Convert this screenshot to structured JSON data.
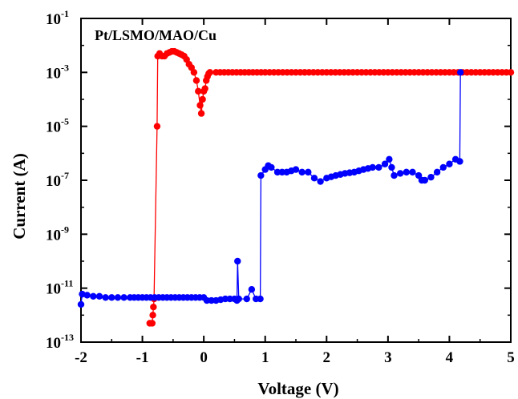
{
  "chart_data": {
    "type": "scatter",
    "title": "",
    "annotation": "Pt/LSMO/MAO/Cu",
    "xlabel": "Voltage (V)",
    "ylabel": "Current (A)",
    "xlim": [
      -2,
      5
    ],
    "ylim_log10": [
      -13,
      -1
    ],
    "y_scale": "log",
    "grid": false,
    "legend": "none",
    "x_ticks": [
      "-2",
      "-1",
      "0",
      "1",
      "2",
      "3",
      "4",
      "5"
    ],
    "y_ticks": [
      {
        "base": "10",
        "exp": "-1"
      },
      {
        "base": "10",
        "exp": "-3"
      },
      {
        "base": "10",
        "exp": "-5"
      },
      {
        "base": "10",
        "exp": "-7"
      },
      {
        "base": "10",
        "exp": "-9"
      },
      {
        "base": "10",
        "exp": "-11"
      },
      {
        "base": "10",
        "exp": "-13"
      }
    ],
    "series": [
      {
        "color": "#ff0000",
        "points": [
          [
            -0.88,
            5e-13
          ],
          [
            -0.84,
            5e-13
          ],
          [
            -0.83,
            1e-12
          ],
          [
            -0.82,
            2e-12
          ],
          [
            -0.81,
            4e-12
          ],
          [
            -0.76,
            1e-05
          ],
          [
            -0.75,
            0.004
          ],
          [
            -0.72,
            0.005
          ],
          [
            -0.68,
            0.004
          ],
          [
            -0.64,
            0.004
          ],
          [
            -0.6,
            0.005
          ],
          [
            -0.56,
            0.0055
          ],
          [
            -0.52,
            0.006
          ],
          [
            -0.48,
            0.006
          ],
          [
            -0.44,
            0.0055
          ],
          [
            -0.4,
            0.005
          ],
          [
            -0.36,
            0.0045
          ],
          [
            -0.32,
            0.004
          ],
          [
            -0.28,
            0.003
          ],
          [
            -0.24,
            0.002
          ],
          [
            -0.2,
            0.0015
          ],
          [
            -0.16,
            0.001
          ],
          [
            -0.12,
            0.0005
          ],
          [
            -0.09,
            0.0002
          ],
          [
            -0.06,
            6e-05
          ],
          [
            -0.04,
            3e-05
          ],
          [
            -0.02,
            0.0001
          ],
          [
            0.0,
            0.0002
          ],
          [
            0.02,
            0.00025
          ],
          [
            0.04,
            0.0005
          ],
          [
            0.06,
            0.0007
          ],
          [
            0.08,
            0.0009
          ],
          [
            0.1,
            0.001
          ],
          [
            0.2,
            0.001
          ],
          [
            0.4,
            0.001
          ],
          [
            0.6,
            0.001
          ],
          [
            0.8,
            0.001
          ],
          [
            1.0,
            0.001
          ],
          [
            1.5,
            0.001
          ],
          [
            2.0,
            0.001
          ],
          [
            2.5,
            0.001
          ],
          [
            3.0,
            0.001
          ],
          [
            3.5,
            0.001
          ],
          [
            4.0,
            0.001
          ],
          [
            4.5,
            0.001
          ],
          [
            5.0,
            0.001
          ]
        ]
      },
      {
        "color": "#0000ff",
        "points": [
          [
            -2.0,
            2.5e-12
          ],
          [
            -1.98,
            6e-12
          ],
          [
            -1.9,
            5.5e-12
          ],
          [
            -1.8,
            5e-12
          ],
          [
            -1.7,
            5e-12
          ],
          [
            -1.6,
            4.5e-12
          ],
          [
            -1.5,
            4.5e-12
          ],
          [
            -1.4,
            4.5e-12
          ],
          [
            -1.3,
            4.5e-12
          ],
          [
            -1.2,
            4.5e-12
          ],
          [
            -1.0,
            4.5e-12
          ],
          [
            -0.8,
            4.5e-12
          ],
          [
            -0.6,
            4.5e-12
          ],
          [
            -0.4,
            4.5e-12
          ],
          [
            -0.2,
            4.5e-12
          ],
          [
            0.0,
            4.5e-12
          ],
          [
            0.05,
            3.5e-12
          ],
          [
            0.2,
            3.5e-12
          ],
          [
            0.35,
            4e-12
          ],
          [
            0.5,
            4e-12
          ],
          [
            0.54,
            3.5e-12
          ],
          [
            0.55,
            1e-10
          ],
          [
            0.57,
            4e-12
          ],
          [
            0.7,
            4e-12
          ],
          [
            0.78,
            9e-12
          ],
          [
            0.85,
            4e-12
          ],
          [
            0.92,
            4e-12
          ],
          [
            0.93,
            1.5e-07
          ],
          [
            1.0,
            2.5e-07
          ],
          [
            1.05,
            3.5e-07
          ],
          [
            1.1,
            3e-07
          ],
          [
            1.2,
            2e-07
          ],
          [
            1.35,
            2e-07
          ],
          [
            1.5,
            2.5e-07
          ],
          [
            1.6,
            2e-07
          ],
          [
            1.7,
            2e-07
          ],
          [
            1.8,
            1.2e-07
          ],
          [
            1.9,
            9e-08
          ],
          [
            2.0,
            1.2e-07
          ],
          [
            2.15,
            1.5e-07
          ],
          [
            2.3,
            1.8e-07
          ],
          [
            2.45,
            2e-07
          ],
          [
            2.6,
            2.5e-07
          ],
          [
            2.75,
            3e-07
          ],
          [
            2.85,
            3e-07
          ],
          [
            2.95,
            4e-07
          ],
          [
            3.02,
            6e-07
          ],
          [
            3.06,
            3e-07
          ],
          [
            3.1,
            1.5e-07
          ],
          [
            3.2,
            1.8e-07
          ],
          [
            3.3,
            2e-07
          ],
          [
            3.4,
            2e-07
          ],
          [
            3.5,
            1.5e-07
          ],
          [
            3.55,
            1e-07
          ],
          [
            3.6,
            1e-07
          ],
          [
            3.7,
            1.3e-07
          ],
          [
            3.8,
            2e-07
          ],
          [
            3.9,
            3e-07
          ],
          [
            4.0,
            4e-07
          ],
          [
            4.1,
            6e-07
          ],
          [
            4.17,
            5e-07
          ],
          [
            4.18,
            0.001
          ]
        ]
      }
    ]
  }
}
